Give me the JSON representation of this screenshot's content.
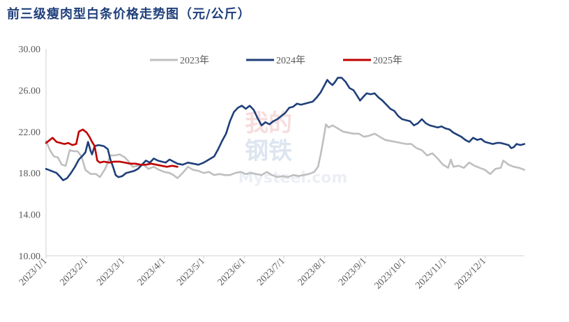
{
  "title": "前三级瘦肉型白条价格走势图（元/公斤）",
  "watermark": [
    "我的",
    "钢铁",
    "Mysteel.com"
  ],
  "chart_data": {
    "type": "line",
    "title": "前三级瘦肉型白条价格走势图（元/公斤）",
    "xlabel": "",
    "ylabel": "",
    "x_range_days": [
      0,
      364
    ],
    "ylim": [
      10,
      30
    ],
    "yticks": [
      "10.00",
      "14.00",
      "18.00",
      "22.00",
      "26.00",
      "30.00"
    ],
    "xticks": [
      "2023/1/1",
      "2023/2/1",
      "2023/3/1",
      "2023/4/1",
      "2023/5/1",
      "2023/6/1",
      "2023/7/1",
      "2023/8/1",
      "2023/9/1",
      "2023/10/1",
      "2023/11/1",
      "2023/12/1"
    ],
    "xtick_days": [
      0,
      31,
      59,
      90,
      120,
      151,
      181,
      212,
      243,
      273,
      304,
      334
    ],
    "grid": false,
    "legend": "top",
    "series": [
      {
        "name": "2023年",
        "color": "#bfbfbf",
        "points": [
          [
            0,
            21.1
          ],
          [
            3,
            20.2
          ],
          [
            6,
            19.6
          ],
          [
            9,
            19.5
          ],
          [
            12,
            18.8
          ],
          [
            15,
            18.7
          ],
          [
            18,
            20.2
          ],
          [
            21,
            20.1
          ],
          [
            24,
            20.1
          ],
          [
            27,
            19.6
          ],
          [
            30,
            18.3
          ],
          [
            34,
            17.9
          ],
          [
            38,
            17.9
          ],
          [
            41,
            17.6
          ],
          [
            45,
            18.4
          ],
          [
            49,
            19.7
          ],
          [
            52,
            19.7
          ],
          [
            56,
            19.8
          ],
          [
            60,
            19.5
          ],
          [
            63,
            19.1
          ],
          [
            66,
            18.6
          ],
          [
            70,
            18.7
          ],
          [
            74,
            18.8
          ],
          [
            78,
            18.4
          ],
          [
            82,
            18.6
          ],
          [
            86,
            18.3
          ],
          [
            90,
            18.1
          ],
          [
            94,
            18.0
          ],
          [
            97,
            17.8
          ],
          [
            100,
            17.5
          ],
          [
            104,
            18.0
          ],
          [
            108,
            18.6
          ],
          [
            112,
            18.3
          ],
          [
            116,
            18.2
          ],
          [
            120,
            18.0
          ],
          [
            124,
            18.1
          ],
          [
            128,
            17.8
          ],
          [
            132,
            17.9
          ],
          [
            136,
            17.8
          ],
          [
            140,
            17.8
          ],
          [
            144,
            18.0
          ],
          [
            148,
            18.1
          ],
          [
            152,
            17.9
          ],
          [
            156,
            18.0
          ],
          [
            160,
            17.9
          ],
          [
            164,
            17.8
          ],
          [
            168,
            18.1
          ],
          [
            172,
            17.8
          ],
          [
            176,
            17.6
          ],
          [
            180,
            17.7
          ],
          [
            184,
            17.6
          ],
          [
            188,
            17.8
          ],
          [
            192,
            17.7
          ],
          [
            196,
            17.8
          ],
          [
            200,
            17.9
          ],
          [
            204,
            18.1
          ],
          [
            207,
            18.6
          ],
          [
            209,
            19.8
          ],
          [
            211,
            21.2
          ],
          [
            213,
            22.7
          ],
          [
            215,
            22.4
          ],
          [
            218,
            22.6
          ],
          [
            222,
            22.3
          ],
          [
            226,
            22.0
          ],
          [
            230,
            21.9
          ],
          [
            234,
            21.8
          ],
          [
            238,
            21.8
          ],
          [
            242,
            21.5
          ],
          [
            246,
            21.6
          ],
          [
            250,
            21.8
          ],
          [
            254,
            21.5
          ],
          [
            258,
            21.2
          ],
          [
            262,
            21.1
          ],
          [
            266,
            21.0
          ],
          [
            270,
            20.9
          ],
          [
            274,
            20.8
          ],
          [
            278,
            20.8
          ],
          [
            282,
            20.4
          ],
          [
            286,
            20.2
          ],
          [
            290,
            19.7
          ],
          [
            294,
            19.9
          ],
          [
            298,
            19.4
          ],
          [
            302,
            18.8
          ],
          [
            306,
            18.5
          ],
          [
            308,
            19.3
          ],
          [
            310,
            18.6
          ],
          [
            314,
            18.7
          ],
          [
            318,
            18.5
          ],
          [
            322,
            19.0
          ],
          [
            326,
            18.7
          ],
          [
            330,
            18.5
          ],
          [
            334,
            18.3
          ],
          [
            338,
            17.9
          ],
          [
            342,
            18.4
          ],
          [
            346,
            18.5
          ],
          [
            348,
            19.2
          ],
          [
            352,
            18.8
          ],
          [
            356,
            18.6
          ],
          [
            360,
            18.5
          ],
          [
            364,
            18.3
          ]
        ]
      },
      {
        "name": "2024年",
        "color": "#1f3f7a",
        "points": [
          [
            0,
            18.4
          ],
          [
            4,
            18.2
          ],
          [
            8,
            18.0
          ],
          [
            11,
            17.6
          ],
          [
            13,
            17.3
          ],
          [
            16,
            17.5
          ],
          [
            19,
            18.0
          ],
          [
            22,
            18.6
          ],
          [
            25,
            19.3
          ],
          [
            28,
            19.7
          ],
          [
            30,
            20.0
          ],
          [
            32,
            21.0
          ],
          [
            34,
            20.1
          ],
          [
            35,
            19.8
          ],
          [
            37,
            20.6
          ],
          [
            40,
            20.7
          ],
          [
            44,
            20.6
          ],
          [
            47,
            20.3
          ],
          [
            49,
            19.3
          ],
          [
            51,
            18.6
          ],
          [
            53,
            17.8
          ],
          [
            55,
            17.6
          ],
          [
            58,
            17.7
          ],
          [
            61,
            18.0
          ],
          [
            64,
            18.1
          ],
          [
            67,
            18.2
          ],
          [
            70,
            18.4
          ],
          [
            73,
            18.8
          ],
          [
            76,
            19.2
          ],
          [
            79,
            19.0
          ],
          [
            82,
            19.4
          ],
          [
            85,
            19.2
          ],
          [
            88,
            19.1
          ],
          [
            91,
            19.0
          ],
          [
            94,
            19.3
          ],
          [
            97,
            19.1
          ],
          [
            100,
            18.9
          ],
          [
            104,
            18.8
          ],
          [
            108,
            19.0
          ],
          [
            112,
            18.9
          ],
          [
            116,
            18.8
          ],
          [
            120,
            19.0
          ],
          [
            124,
            19.3
          ],
          [
            128,
            19.6
          ],
          [
            131,
            20.3
          ],
          [
            134,
            21.1
          ],
          [
            137,
            21.8
          ],
          [
            140,
            23.0
          ],
          [
            143,
            23.9
          ],
          [
            146,
            24.3
          ],
          [
            149,
            24.5
          ],
          [
            152,
            24.2
          ],
          [
            155,
            24.5
          ],
          [
            158,
            24.1
          ],
          [
            161,
            23.3
          ],
          [
            164,
            22.6
          ],
          [
            167,
            22.9
          ],
          [
            170,
            22.7
          ],
          [
            173,
            23.0
          ],
          [
            176,
            23.2
          ],
          [
            179,
            23.5
          ],
          [
            182,
            23.8
          ],
          [
            185,
            24.3
          ],
          [
            188,
            24.4
          ],
          [
            191,
            24.7
          ],
          [
            194,
            24.6
          ],
          [
            197,
            24.7
          ],
          [
            200,
            24.8
          ],
          [
            203,
            24.9
          ],
          [
            206,
            25.3
          ],
          [
            209,
            25.8
          ],
          [
            212,
            26.5
          ],
          [
            214,
            27.0
          ],
          [
            216,
            26.7
          ],
          [
            218,
            26.5
          ],
          [
            220,
            26.8
          ],
          [
            222,
            27.2
          ],
          [
            225,
            27.2
          ],
          [
            228,
            26.8
          ],
          [
            231,
            26.2
          ],
          [
            234,
            26.0
          ],
          [
            237,
            25.4
          ],
          [
            239,
            25.0
          ],
          [
            241,
            25.3
          ],
          [
            244,
            25.7
          ],
          [
            247,
            25.6
          ],
          [
            250,
            25.7
          ],
          [
            253,
            25.3
          ],
          [
            256,
            25.0
          ],
          [
            259,
            24.6
          ],
          [
            262,
            24.2
          ],
          [
            265,
            24.0
          ],
          [
            268,
            23.5
          ],
          [
            271,
            23.2
          ],
          [
            274,
            23.1
          ],
          [
            277,
            23.0
          ],
          [
            280,
            22.6
          ],
          [
            283,
            22.8
          ],
          [
            286,
            23.2
          ],
          [
            289,
            22.8
          ],
          [
            292,
            22.6
          ],
          [
            295,
            22.5
          ],
          [
            298,
            22.4
          ],
          [
            301,
            22.5
          ],
          [
            304,
            22.3
          ],
          [
            307,
            22.2
          ],
          [
            310,
            21.9
          ],
          [
            313,
            21.7
          ],
          [
            316,
            21.5
          ],
          [
            319,
            21.2
          ],
          [
            322,
            21.0
          ],
          [
            325,
            21.4
          ],
          [
            328,
            21.2
          ],
          [
            331,
            21.3
          ],
          [
            334,
            21.0
          ],
          [
            337,
            20.9
          ],
          [
            340,
            20.8
          ],
          [
            343,
            20.9
          ],
          [
            346,
            20.9
          ],
          [
            349,
            20.8
          ],
          [
            352,
            20.7
          ],
          [
            354,
            20.4
          ],
          [
            356,
            20.5
          ],
          [
            358,
            20.8
          ],
          [
            361,
            20.7
          ],
          [
            364,
            20.8
          ]
        ]
      },
      {
        "name": "2025年",
        "color": "#c00000",
        "points": [
          [
            0,
            20.9
          ],
          [
            2,
            21.1
          ],
          [
            5,
            21.4
          ],
          [
            8,
            21.0
          ],
          [
            11,
            20.9
          ],
          [
            14,
            20.8
          ],
          [
            17,
            20.9
          ],
          [
            20,
            20.7
          ],
          [
            23,
            20.8
          ],
          [
            25,
            22.0
          ],
          [
            28,
            22.2
          ],
          [
            31,
            21.9
          ],
          [
            33,
            21.5
          ],
          [
            35,
            21.0
          ],
          [
            37,
            20.6
          ],
          [
            39,
            19.2
          ],
          [
            41,
            19.0
          ],
          [
            44,
            19.1
          ],
          [
            48,
            19.0
          ],
          [
            52,
            19.1
          ],
          [
            56,
            19.1
          ],
          [
            60,
            19.0
          ],
          [
            64,
            18.9
          ],
          [
            68,
            18.9
          ],
          [
            72,
            18.8
          ],
          [
            76,
            18.8
          ],
          [
            80,
            18.9
          ],
          [
            84,
            18.8
          ],
          [
            88,
            18.7
          ],
          [
            92,
            18.6
          ],
          [
            96,
            18.7
          ],
          [
            100,
            18.6
          ]
        ]
      }
    ]
  }
}
